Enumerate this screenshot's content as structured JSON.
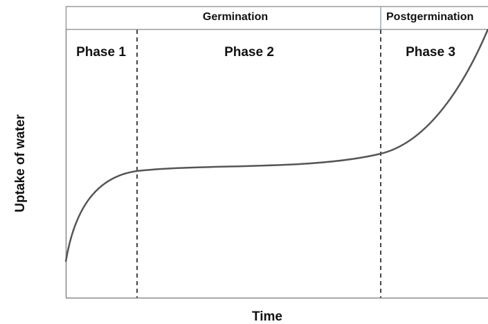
{
  "header": {
    "stage_1": "Germination",
    "stage_2": "Postgermination"
  },
  "phases": [
    "Phase 1",
    "Phase 2",
    "Phase 3"
  ],
  "axes": {
    "y_label": "Uptake of water",
    "x_label": "Time"
  }
}
